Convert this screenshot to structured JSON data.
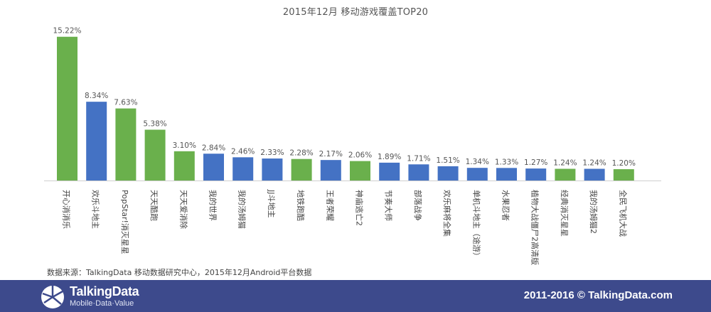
{
  "title": "2015年12月  移动游戏覆盖TOP20",
  "source": "数据来源：TalkingData  移动数据研究中心，2015年12月Android平台数据",
  "footer": {
    "logo_name": "TalkingData",
    "logo_tagline": "Mobile·Data·Value",
    "copyright": "2011-2016 © TalkingData.com"
  },
  "colors": {
    "green": "#6ab04c",
    "blue": "#4472c4",
    "footer": "#3d4a8c"
  },
  "chart_data": {
    "type": "bar",
    "title": "2015年12月  移动游戏覆盖TOP20",
    "categories": [
      "开心消消乐",
      "欢乐斗地主",
      "PopStar!消灭星星",
      "天天酷跑",
      "天天爱消除",
      "我的世界",
      "我的汤姆猫",
      "JJ斗地主",
      "地铁跑酷",
      "王者荣耀",
      "神庙逃亡2",
      "节奏大师",
      "部落战争",
      "欢乐麻将全集",
      "单机斗地主（途游）",
      "水果忍者",
      "植物大战僵尸2高清版",
      "经典消灭星星",
      "我的汤姆猫2",
      "全民飞机大战"
    ],
    "values": [
      15.22,
      8.34,
      7.63,
      5.38,
      3.1,
      2.84,
      2.46,
      2.33,
      2.28,
      2.17,
      2.06,
      1.89,
      1.71,
      1.51,
      1.34,
      1.33,
      1.27,
      1.24,
      1.24,
      1.2
    ],
    "value_labels": [
      "15.22%",
      "8.34%",
      "7.63%",
      "5.38%",
      "3.10%",
      "2.84%",
      "2.46%",
      "2.33%",
      "2.28%",
      "2.17%",
      "2.06%",
      "1.89%",
      "1.71%",
      "1.51%",
      "1.34%",
      "1.33%",
      "1.27%",
      "1.24%",
      "1.24%",
      "1.20%"
    ],
    "bar_colors": [
      "green",
      "blue",
      "green",
      "green",
      "green",
      "blue",
      "blue",
      "blue",
      "green",
      "blue",
      "green",
      "blue",
      "blue",
      "blue",
      "blue",
      "blue",
      "blue",
      "green",
      "blue",
      "green"
    ],
    "ylim": [
      0,
      16
    ],
    "grid": false,
    "legend": "none"
  }
}
